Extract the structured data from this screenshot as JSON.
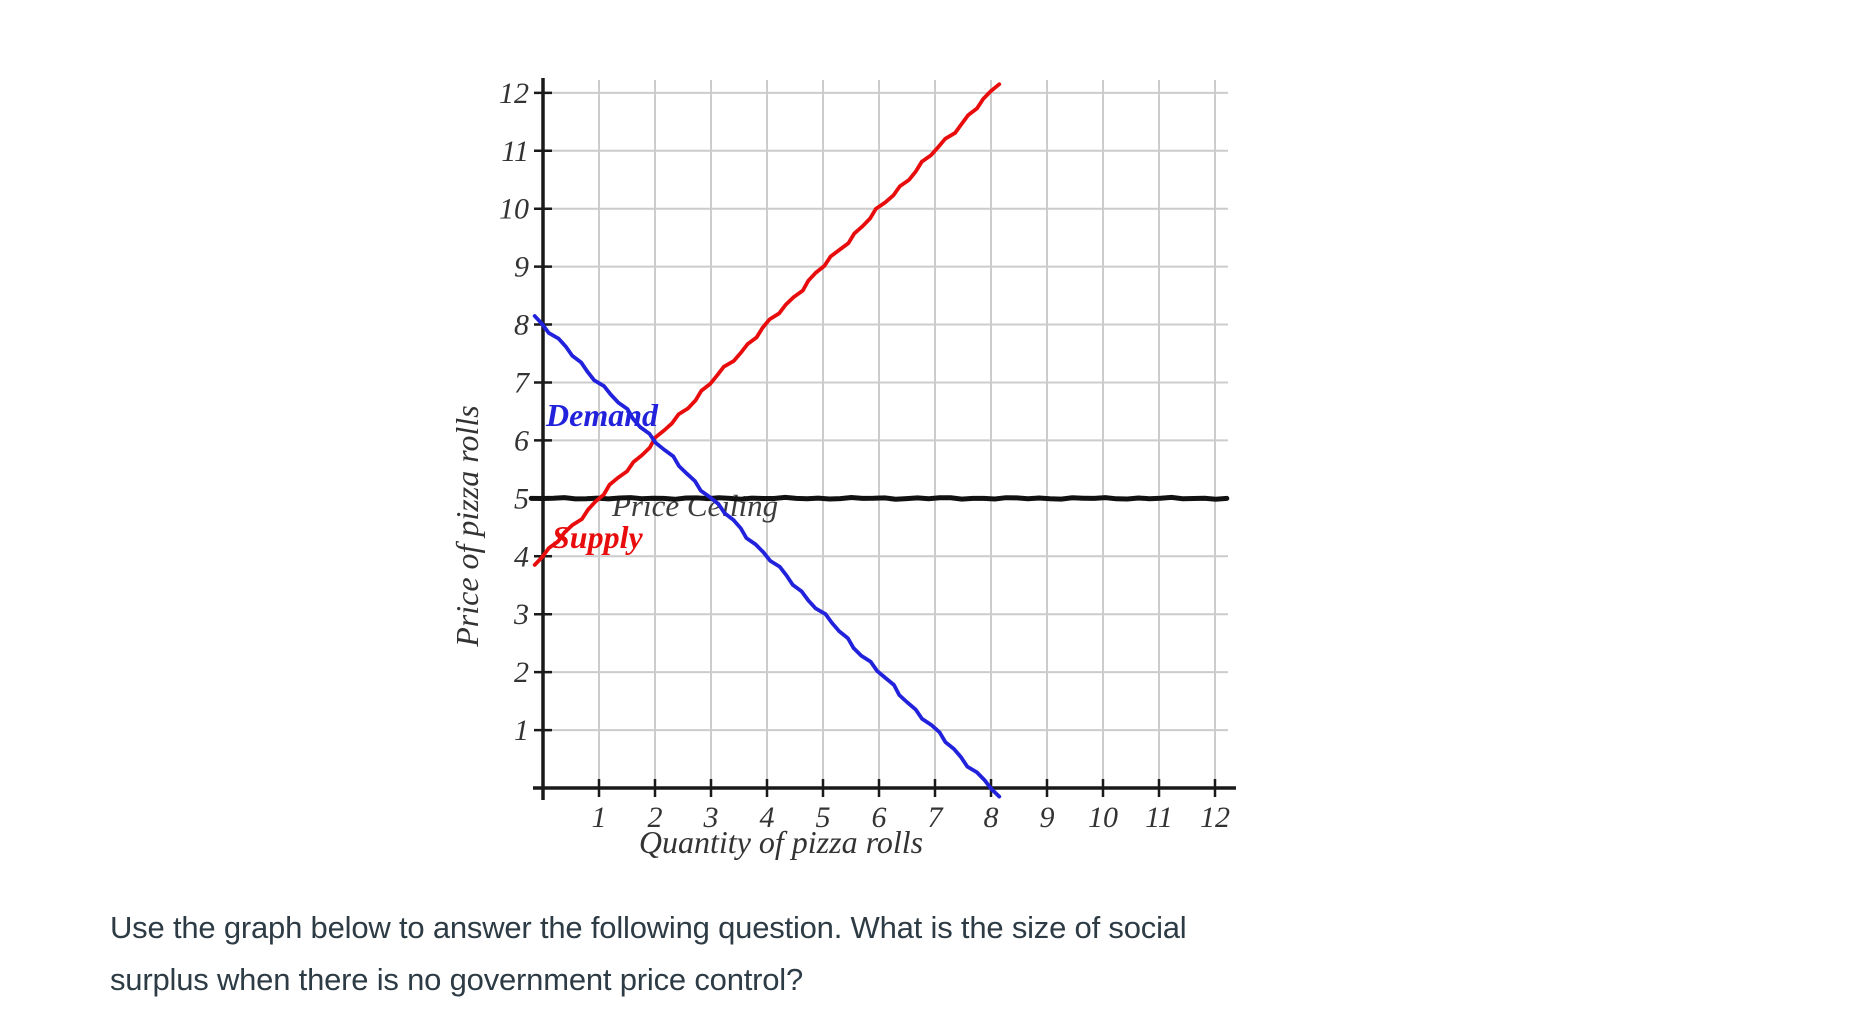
{
  "page": {
    "background": "#ffffff",
    "question": {
      "line1": "Use the graph below to answer the following question. What is the size of social",
      "line2": "surplus when there is no government price control?"
    }
  },
  "chart_data": {
    "type": "line",
    "title": "",
    "xlabel": "Quantity of pizza rolls",
    "ylabel": "Price of pizza rolls",
    "xlim": [
      0,
      12.3
    ],
    "ylim": [
      0,
      12.3
    ],
    "x_ticks": [
      1,
      2,
      3,
      4,
      5,
      6,
      7,
      8,
      9,
      10,
      11,
      12
    ],
    "y_ticks": [
      1,
      2,
      3,
      4,
      5,
      6,
      7,
      8,
      9,
      10,
      11,
      12
    ],
    "grid": true,
    "legend_position": "inline-annotations",
    "colors": {
      "demand": "#2222dd",
      "supply": "#e80c0c",
      "price_ceiling": "#111111",
      "gridline": "#cccccc",
      "axis": "#1a1a1a",
      "chart_text": "#333333"
    },
    "series": [
      {
        "name": "Demand",
        "color": "#2222dd",
        "points": [
          [
            0,
            8
          ],
          [
            8,
            0
          ]
        ]
      },
      {
        "name": "Supply",
        "color": "#e80c0c",
        "points": [
          [
            0,
            4
          ],
          [
            8,
            12
          ]
        ]
      },
      {
        "name": "Price Ceiling",
        "color": "#111111",
        "points": [
          [
            0,
            5
          ],
          [
            12,
            5
          ]
        ]
      }
    ],
    "intersection_of_curves": {
      "quantity": 2,
      "price": 6
    }
  }
}
